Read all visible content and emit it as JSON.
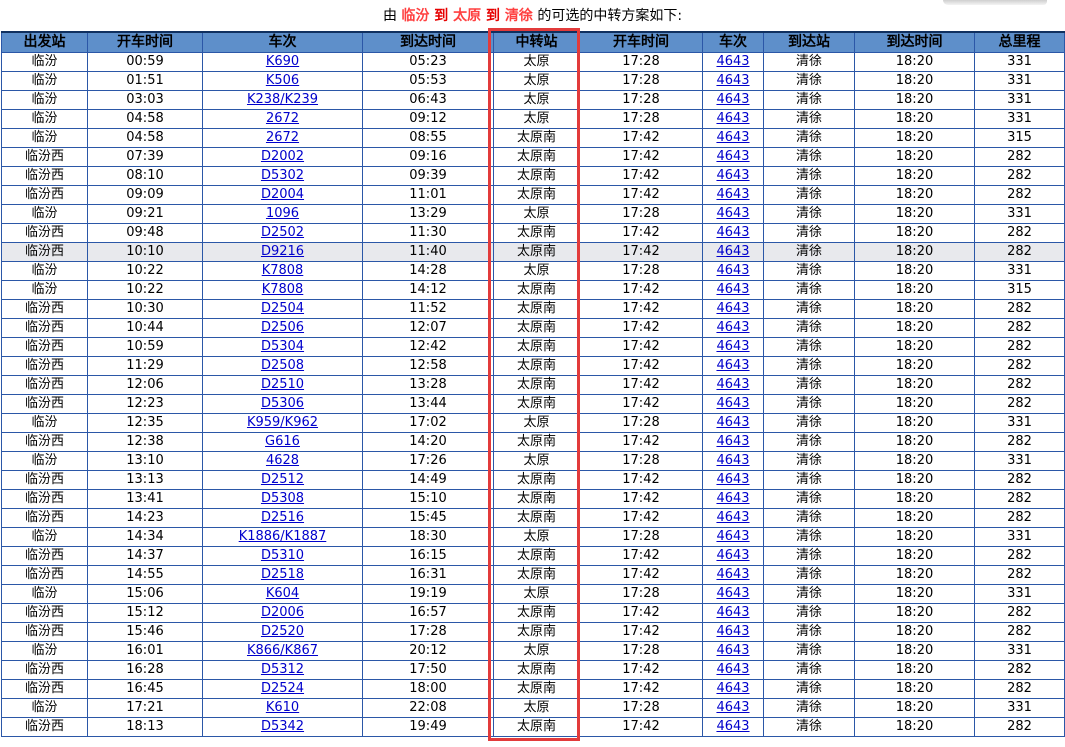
{
  "title": {
    "prefix": "由 ",
    "route_parts": [
      {
        "name": "origin-station",
        "text": "临汾",
        "color": "#FF4040"
      },
      {
        "name": "route-connector",
        "text": " 到 ",
        "color": "#E60000"
      },
      {
        "name": "transfer-station",
        "text": "太原",
        "color": "#FF4040"
      },
      {
        "name": "route-connector",
        "text": " 到 ",
        "color": "#E60000"
      },
      {
        "name": "destination-station",
        "text": "清徐",
        "color": "#FF4040"
      }
    ],
    "suffix": " 的可选的中转方案如下:"
  },
  "colors": {
    "header_bg": "#5E8FCA",
    "table_border": "#2B57A7",
    "table_border_dark": "#10305F",
    "link": "#0000CC",
    "red_box": "#E23B3B",
    "highlight_row_bg": "#E8E9ED",
    "title_red": "#FF2A2A"
  },
  "table": {
    "columns": [
      "出发站",
      "开车时间",
      "车次",
      "到达时间",
      "中转站",
      "开车时间",
      "车次",
      "到达站",
      "到达时间",
      "总里程"
    ],
    "link_column_indexes": [
      2,
      6
    ],
    "highlighted_row_index": 10,
    "rows": [
      [
        "临汾",
        "00:59",
        "K690",
        "05:23",
        "太原",
        "17:28",
        "4643",
        "清徐",
        "18:20",
        "331"
      ],
      [
        "临汾",
        "01:51",
        "K506",
        "05:53",
        "太原",
        "17:28",
        "4643",
        "清徐",
        "18:20",
        "331"
      ],
      [
        "临汾",
        "03:03",
        "K238/K239",
        "06:43",
        "太原",
        "17:28",
        "4643",
        "清徐",
        "18:20",
        "331"
      ],
      [
        "临汾",
        "04:58",
        "2672",
        "09:12",
        "太原",
        "17:28",
        "4643",
        "清徐",
        "18:20",
        "331"
      ],
      [
        "临汾",
        "04:58",
        "2672",
        "08:55",
        "太原南",
        "17:42",
        "4643",
        "清徐",
        "18:20",
        "315"
      ],
      [
        "临汾西",
        "07:39",
        "D2002",
        "09:16",
        "太原南",
        "17:42",
        "4643",
        "清徐",
        "18:20",
        "282"
      ],
      [
        "临汾西",
        "08:10",
        "D5302",
        "09:39",
        "太原南",
        "17:42",
        "4643",
        "清徐",
        "18:20",
        "282"
      ],
      [
        "临汾西",
        "09:09",
        "D2004",
        "11:01",
        "太原南",
        "17:42",
        "4643",
        "清徐",
        "18:20",
        "282"
      ],
      [
        "临汾",
        "09:21",
        "1096",
        "13:29",
        "太原",
        "17:28",
        "4643",
        "清徐",
        "18:20",
        "331"
      ],
      [
        "临汾西",
        "09:48",
        "D2502",
        "11:30",
        "太原南",
        "17:42",
        "4643",
        "清徐",
        "18:20",
        "282"
      ],
      [
        "临汾西",
        "10:10",
        "D9216",
        "11:40",
        "太原南",
        "17:42",
        "4643",
        "清徐",
        "18:20",
        "282"
      ],
      [
        "临汾",
        "10:22",
        "K7808",
        "14:28",
        "太原",
        "17:28",
        "4643",
        "清徐",
        "18:20",
        "331"
      ],
      [
        "临汾",
        "10:22",
        "K7808",
        "14:12",
        "太原南",
        "17:42",
        "4643",
        "清徐",
        "18:20",
        "315"
      ],
      [
        "临汾西",
        "10:30",
        "D2504",
        "11:52",
        "太原南",
        "17:42",
        "4643",
        "清徐",
        "18:20",
        "282"
      ],
      [
        "临汾西",
        "10:44",
        "D2506",
        "12:07",
        "太原南",
        "17:42",
        "4643",
        "清徐",
        "18:20",
        "282"
      ],
      [
        "临汾西",
        "10:59",
        "D5304",
        "12:42",
        "太原南",
        "17:42",
        "4643",
        "清徐",
        "18:20",
        "282"
      ],
      [
        "临汾西",
        "11:29",
        "D2508",
        "12:58",
        "太原南",
        "17:42",
        "4643",
        "清徐",
        "18:20",
        "282"
      ],
      [
        "临汾西",
        "12:06",
        "D2510",
        "13:28",
        "太原南",
        "17:42",
        "4643",
        "清徐",
        "18:20",
        "282"
      ],
      [
        "临汾西",
        "12:23",
        "D5306",
        "13:44",
        "太原南",
        "17:42",
        "4643",
        "清徐",
        "18:20",
        "282"
      ],
      [
        "临汾",
        "12:35",
        "K959/K962",
        "17:02",
        "太原",
        "17:28",
        "4643",
        "清徐",
        "18:20",
        "331"
      ],
      [
        "临汾西",
        "12:38",
        "G616",
        "14:20",
        "太原南",
        "17:42",
        "4643",
        "清徐",
        "18:20",
        "282"
      ],
      [
        "临汾",
        "13:10",
        "4628",
        "17:26",
        "太原",
        "17:28",
        "4643",
        "清徐",
        "18:20",
        "331"
      ],
      [
        "临汾西",
        "13:13",
        "D2512",
        "14:49",
        "太原南",
        "17:42",
        "4643",
        "清徐",
        "18:20",
        "282"
      ],
      [
        "临汾西",
        "13:41",
        "D5308",
        "15:10",
        "太原南",
        "17:42",
        "4643",
        "清徐",
        "18:20",
        "282"
      ],
      [
        "临汾西",
        "14:23",
        "D2516",
        "15:45",
        "太原南",
        "17:42",
        "4643",
        "清徐",
        "18:20",
        "282"
      ],
      [
        "临汾",
        "14:34",
        "K1886/K1887",
        "18:30",
        "太原",
        "17:28",
        "4643",
        "清徐",
        "18:20",
        "331"
      ],
      [
        "临汾西",
        "14:37",
        "D5310",
        "16:15",
        "太原南",
        "17:42",
        "4643",
        "清徐",
        "18:20",
        "282"
      ],
      [
        "临汾西",
        "14:55",
        "D2518",
        "16:31",
        "太原南",
        "17:42",
        "4643",
        "清徐",
        "18:20",
        "282"
      ],
      [
        "临汾",
        "15:06",
        "K604",
        "19:19",
        "太原",
        "17:28",
        "4643",
        "清徐",
        "18:20",
        "331"
      ],
      [
        "临汾西",
        "15:12",
        "D2006",
        "16:57",
        "太原南",
        "17:42",
        "4643",
        "清徐",
        "18:20",
        "282"
      ],
      [
        "临汾西",
        "15:46",
        "D2520",
        "17:28",
        "太原南",
        "17:42",
        "4643",
        "清徐",
        "18:20",
        "282"
      ],
      [
        "临汾",
        "16:01",
        "K866/K867",
        "20:12",
        "太原",
        "17:28",
        "4643",
        "清徐",
        "18:20",
        "331"
      ],
      [
        "临汾西",
        "16:28",
        "D5312",
        "17:50",
        "太原南",
        "17:42",
        "4643",
        "清徐",
        "18:20",
        "282"
      ],
      [
        "临汾西",
        "16:45",
        "D2524",
        "18:00",
        "太原南",
        "17:42",
        "4643",
        "清徐",
        "18:20",
        "282"
      ],
      [
        "临汾",
        "17:21",
        "K610",
        "22:08",
        "太原",
        "17:28",
        "4643",
        "清徐",
        "18:20",
        "331"
      ],
      [
        "临汾西",
        "18:13",
        "D5342",
        "19:49",
        "太原南",
        "17:42",
        "4643",
        "清徐",
        "18:20",
        "282"
      ]
    ]
  }
}
